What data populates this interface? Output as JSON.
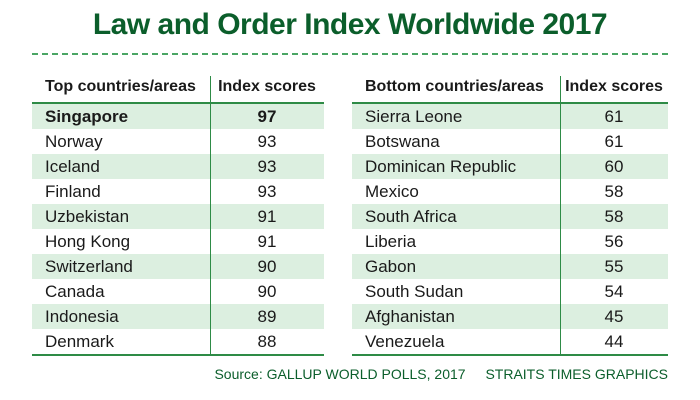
{
  "title": "Law and Order Index Worldwide 2017",
  "source": {
    "text": "Source: GALLUP WORLD POLLS, 2017",
    "credit": "STRAITS TIMES GRAPHICS"
  },
  "colors": {
    "title": "#0b5e2b",
    "rule": "#2e8b46",
    "row_shade": "#dcefe0"
  },
  "chart_data": {
    "type": "table",
    "title": "Law and Order Index Worldwide 2017",
    "tables": [
      {
        "headers": [
          "Top countries/areas",
          "Index scores"
        ],
        "rows": [
          {
            "name": "Singapore",
            "score": "97"
          },
          {
            "name": "Norway",
            "score": "93"
          },
          {
            "name": "Iceland",
            "score": "93"
          },
          {
            "name": "Finland",
            "score": "93"
          },
          {
            "name": "Uzbekistan",
            "score": "91"
          },
          {
            "name": "Hong Kong",
            "score": "91"
          },
          {
            "name": "Switzerland",
            "score": "90"
          },
          {
            "name": "Canada",
            "score": "90"
          },
          {
            "name": "Indonesia",
            "score": "89"
          },
          {
            "name": "Denmark",
            "score": "88"
          }
        ]
      },
      {
        "headers": [
          "Bottom countries/areas",
          "Index scores"
        ],
        "rows": [
          {
            "name": "Sierra Leone",
            "score": "61"
          },
          {
            "name": "Botswana",
            "score": "61"
          },
          {
            "name": "Dominican Republic",
            "score": "60"
          },
          {
            "name": "Mexico",
            "score": "58"
          },
          {
            "name": "South Africa",
            "score": "58"
          },
          {
            "name": "Liberia",
            "score": "56"
          },
          {
            "name": "Gabon",
            "score": "55"
          },
          {
            "name": "South Sudan",
            "score": "54"
          },
          {
            "name": "Afghanistan",
            "score": "45"
          },
          {
            "name": "Venezuela",
            "score": "44"
          }
        ]
      }
    ]
  }
}
